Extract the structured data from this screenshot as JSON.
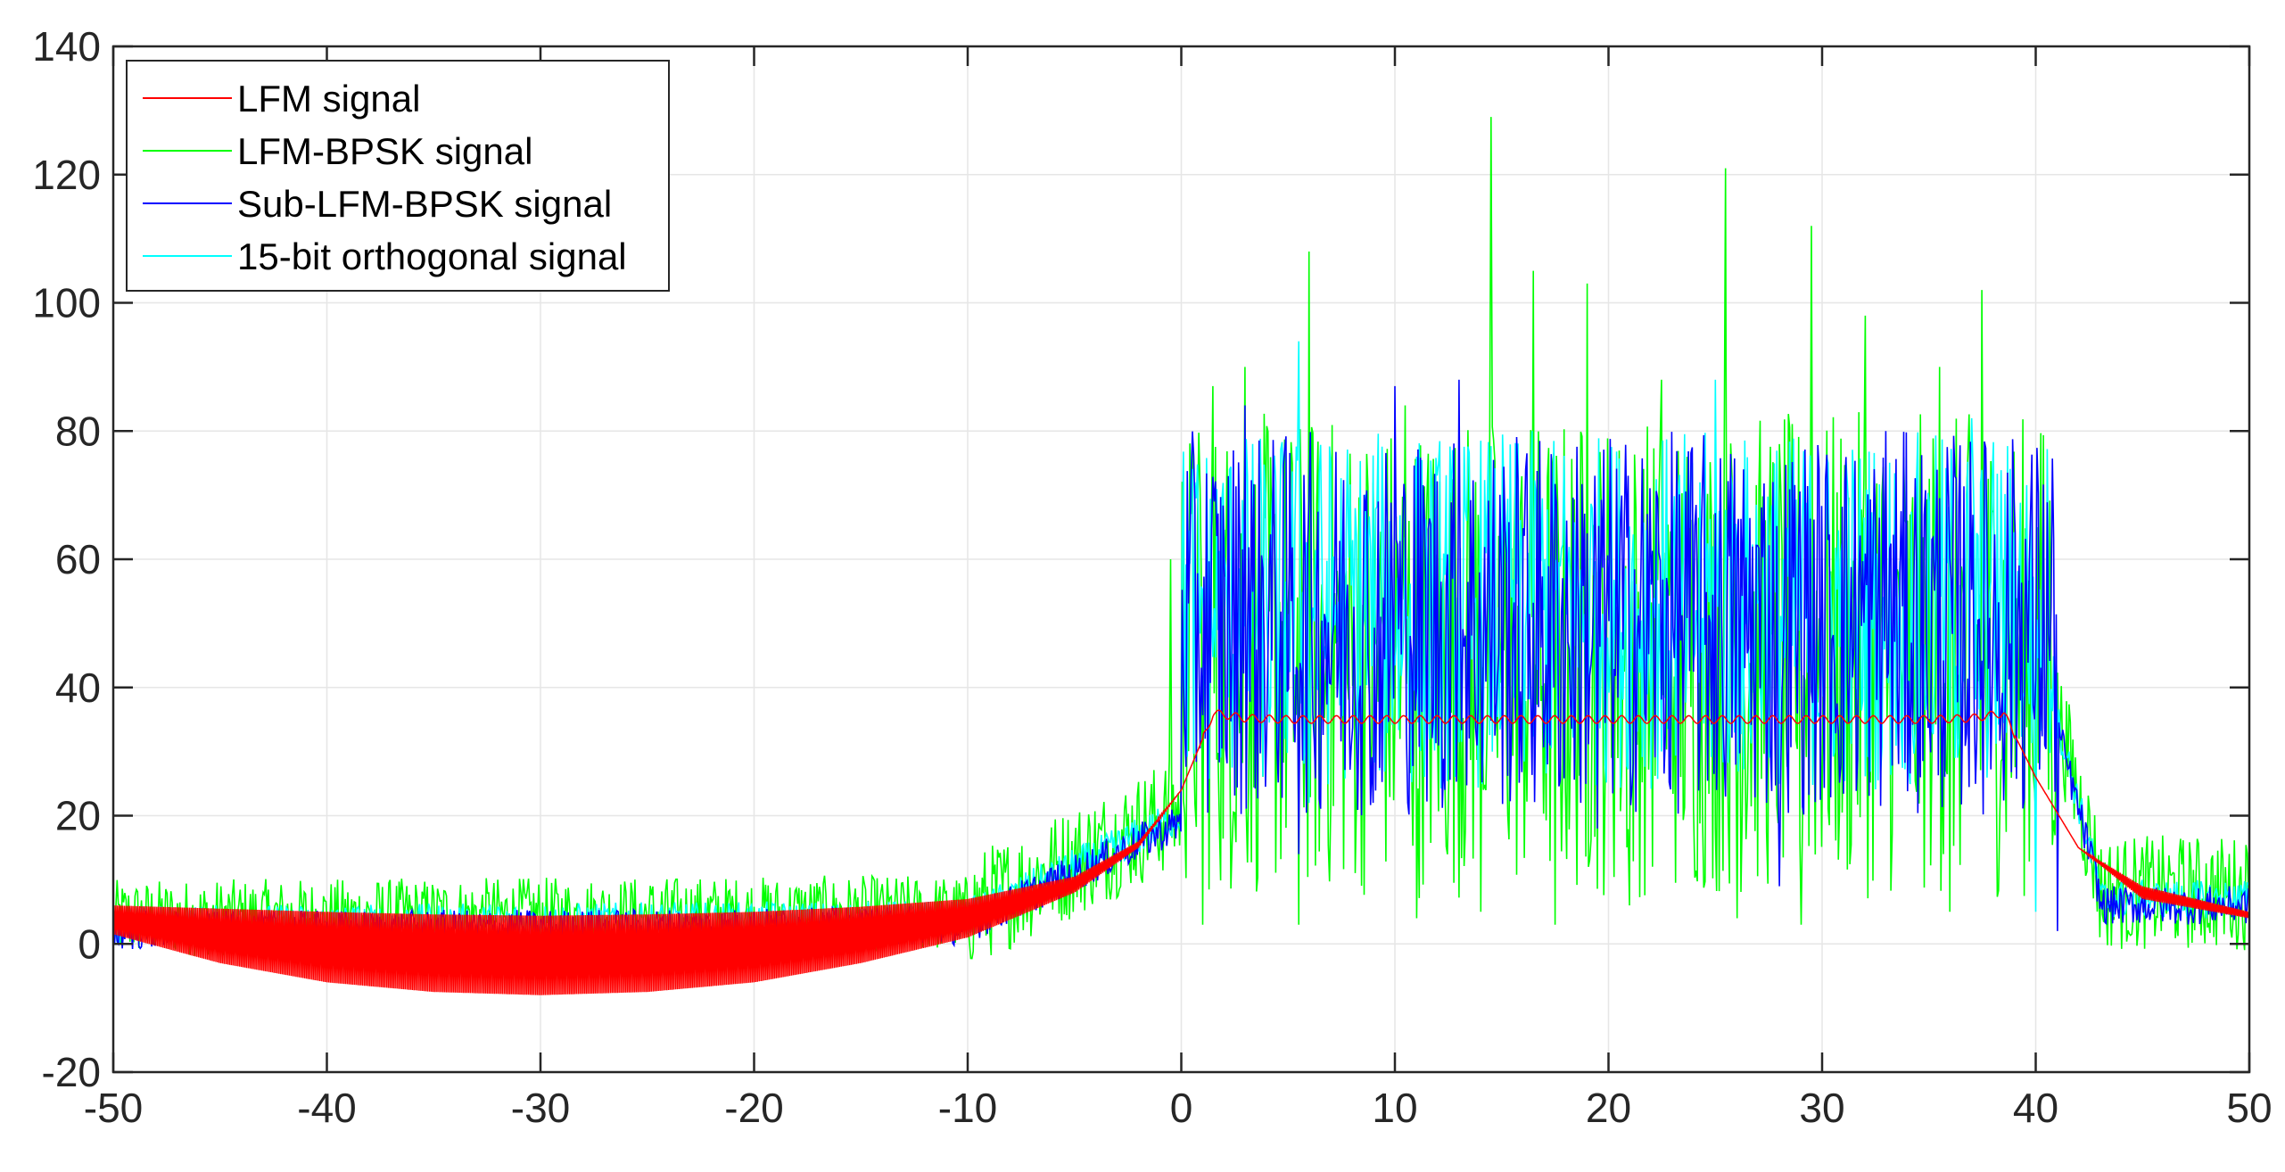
{
  "chart_data": {
    "type": "line",
    "title": "",
    "xlabel": "",
    "ylabel": "",
    "xlim": [
      -50,
      50
    ],
    "ylim": [
      -20,
      140
    ],
    "xticks": [
      -50,
      -40,
      -30,
      -20,
      -10,
      0,
      10,
      20,
      30,
      40,
      50
    ],
    "yticks": [
      -20,
      0,
      20,
      40,
      60,
      80,
      100,
      120,
      140
    ],
    "grid": true,
    "legend_position": "top-left",
    "series": [
      {
        "name": "LFM signal",
        "color": "#ff0000",
        "description_points": {
          "x": [
            -50,
            -45,
            -40,
            -35,
            -30,
            -25,
            -20,
            -15,
            -10,
            -5,
            -2,
            0,
            1.5,
            3,
            5,
            10,
            20,
            30,
            35,
            37,
            38.5,
            40,
            42,
            45,
            50
          ],
          "y_upper": [
            6,
            5.5,
            5,
            4.6,
            4.4,
            4.6,
            5,
            5.8,
            7,
            10.5,
            16,
            24,
            36,
            35.2,
            35,
            35,
            35,
            35,
            35,
            35.2,
            36,
            26,
            15,
            9,
            5
          ],
          "y_lower": [
            1.5,
            -3,
            -6,
            -7.5,
            -8,
            -7.5,
            -6,
            -3,
            1,
            8,
            15,
            24,
            36,
            35.2,
            35,
            35,
            35,
            35,
            35,
            35.2,
            36,
            26,
            15,
            7,
            4
          ]
        }
      },
      {
        "name": "LFM-BPSK signal",
        "color": "#00ff00",
        "peaks": [
          {
            "x": -0.5,
            "y": 60
          },
          {
            "x": 1.5,
            "y": 87
          },
          {
            "x": 3,
            "y": 90
          },
          {
            "x": 6,
            "y": 108
          },
          {
            "x": 10.5,
            "y": 84
          },
          {
            "x": 14.5,
            "y": 129
          },
          {
            "x": 16.5,
            "y": 105
          },
          {
            "x": 19,
            "y": 103
          },
          {
            "x": 22.5,
            "y": 88
          },
          {
            "x": 25.5,
            "y": 121
          },
          {
            "x": 29.5,
            "y": 112
          },
          {
            "x": 32,
            "y": 98
          },
          {
            "x": 35.5,
            "y": 90
          },
          {
            "x": 37.5,
            "y": 102
          }
        ],
        "troughs": [
          {
            "x": 1,
            "y": 3
          },
          {
            "x": 5.5,
            "y": 3
          },
          {
            "x": 11,
            "y": 4
          },
          {
            "x": 14,
            "y": 5
          },
          {
            "x": 17.5,
            "y": 3
          },
          {
            "x": 21,
            "y": 6
          },
          {
            "x": 26,
            "y": 4
          },
          {
            "x": 29,
            "y": 3
          },
          {
            "x": 36,
            "y": 5
          }
        ]
      },
      {
        "name": "Sub-LFM-BPSK signal",
        "color": "#0000ff",
        "peaks": [
          {
            "x": 3,
            "y": 84
          },
          {
            "x": 10,
            "y": 87
          },
          {
            "x": 13,
            "y": 88
          },
          {
            "x": 19.5,
            "y": 95
          },
          {
            "x": 28,
            "y": 87
          },
          {
            "x": 33,
            "y": 80
          },
          {
            "x": 39,
            "y": 70
          }
        ],
        "troughs": [
          {
            "x": 5.5,
            "y": 14
          },
          {
            "x": 9,
            "y": 22
          },
          {
            "x": 19.5,
            "y": 18
          },
          {
            "x": 28,
            "y": 9
          },
          {
            "x": 41,
            "y": 2
          }
        ]
      },
      {
        "name": "15-bit orthogonal signal",
        "color": "#00ffff",
        "peaks": [
          {
            "x": 5.5,
            "y": 94
          },
          {
            "x": 11,
            "y": 76
          },
          {
            "x": 25,
            "y": 88
          },
          {
            "x": 37,
            "y": 82
          }
        ],
        "troughs": [
          {
            "x": 6,
            "y": 22
          },
          {
            "x": 40,
            "y": 5
          }
        ]
      }
    ]
  }
}
